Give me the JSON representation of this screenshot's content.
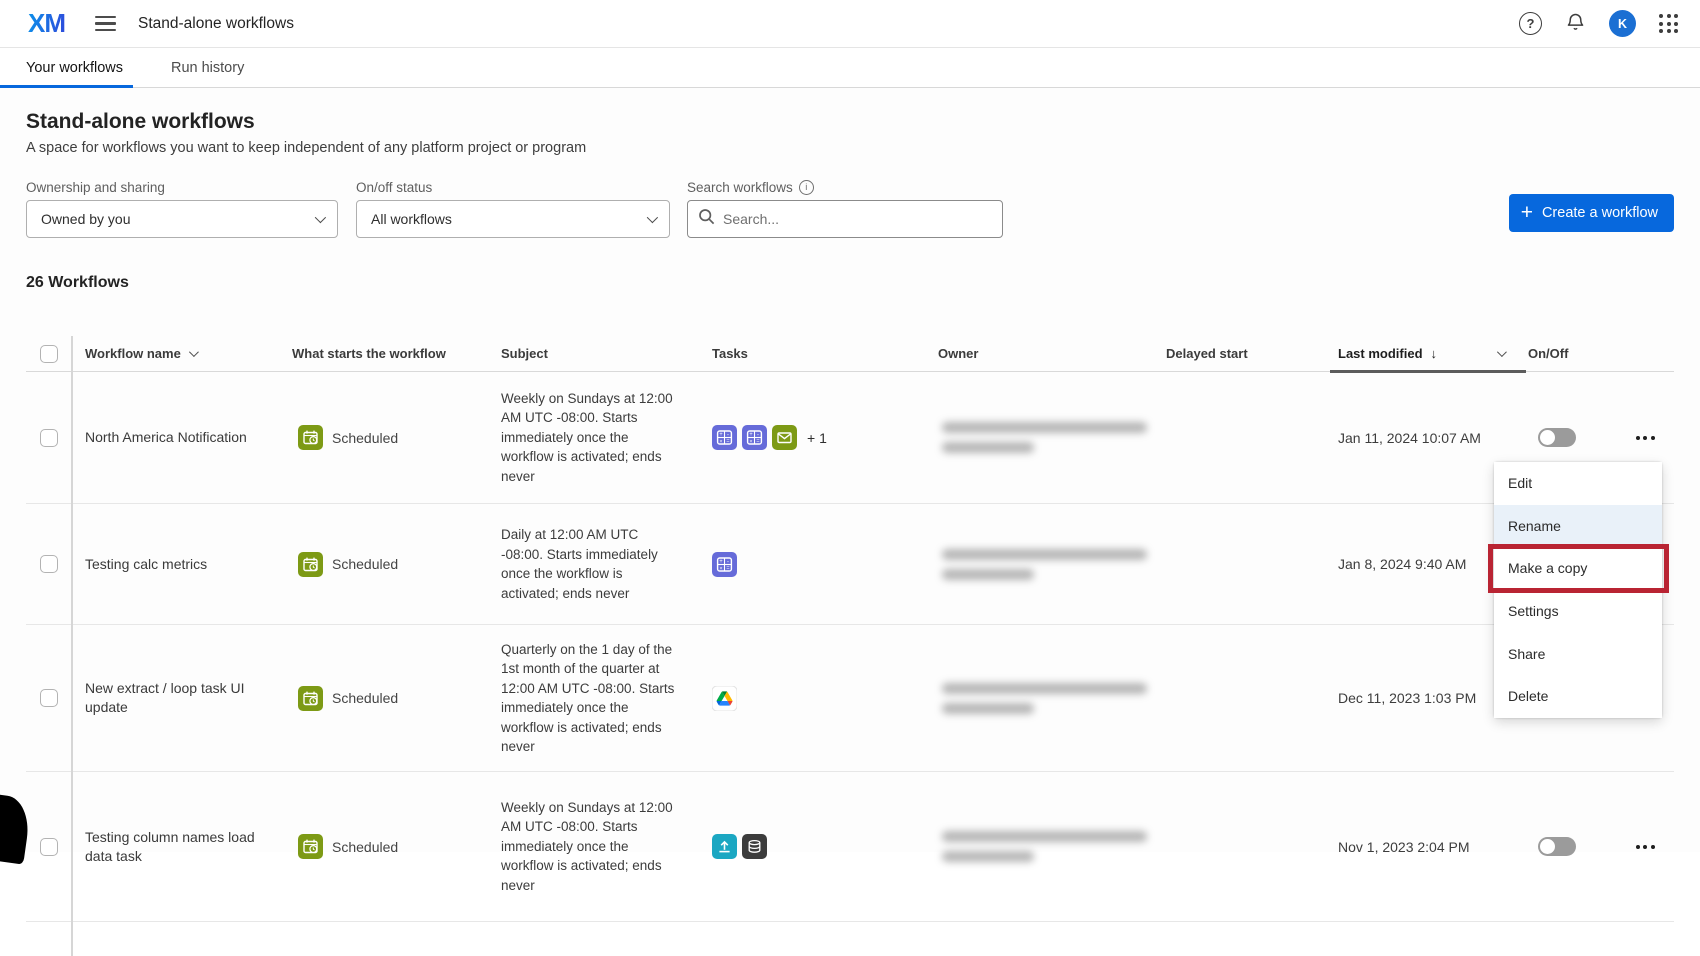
{
  "header": {
    "logo_text": "XM",
    "title": "Stand-alone workflows",
    "avatar_initial": "K",
    "help_glyph": "?"
  },
  "tabs": [
    {
      "label": "Your workflows",
      "active": true
    },
    {
      "label": "Run history",
      "active": false
    }
  ],
  "page": {
    "title": "Stand-alone workflows",
    "subtitle": "A space for workflows you want to keep independent of any platform project or program"
  },
  "filters": {
    "ownership": {
      "label": "Ownership and sharing",
      "value": "Owned by you"
    },
    "status": {
      "label": "On/off status",
      "value": "All workflows"
    },
    "search": {
      "label": "Search workflows",
      "placeholder": "Search..."
    }
  },
  "actions": {
    "create_label": "Create a workflow",
    "plus_glyph": "+"
  },
  "summary": {
    "count_label": "26 Workflows"
  },
  "table": {
    "columns": [
      {
        "label": "Workflow name",
        "sortable": true
      },
      {
        "label": "What starts the workflow"
      },
      {
        "label": "Subject"
      },
      {
        "label": "Tasks"
      },
      {
        "label": "Owner"
      },
      {
        "label": "Delayed start"
      },
      {
        "label": "Last modified",
        "sorted": "desc",
        "sort_glyph": "↓"
      },
      {
        "label": "On/Off"
      }
    ],
    "rows": [
      {
        "name": "North America Notification",
        "trigger": "Scheduled",
        "subject": "Weekly on Sundays at 12:00 AM UTC -08:00. Starts immediately once the workflow is activated; ends never",
        "tasks": [
          "calculation",
          "calculation",
          "email"
        ],
        "tasks_extra": "+ 1",
        "owner_redacted": true,
        "delayed_start": "",
        "last_modified": "Jan 11, 2024 10:07 AM",
        "on": false
      },
      {
        "name": "Testing calc metrics",
        "trigger": "Scheduled",
        "subject": "Daily at 12:00 AM UTC -08:00. Starts immediately once the workflow is activated; ends never",
        "tasks": [
          "calculation"
        ],
        "tasks_extra": "",
        "owner_redacted": true,
        "delayed_start": "",
        "last_modified": "Jan 8, 2024 9:40 AM",
        "on": false
      },
      {
        "name": "New extract / loop task UI update",
        "trigger": "Scheduled",
        "subject": "Quarterly on the 1 day of the 1st month of the quarter at 12:00 AM UTC -08:00. Starts immediately once the workflow is activated; ends never",
        "tasks": [
          "google-drive"
        ],
        "tasks_extra": "",
        "owner_redacted": true,
        "delayed_start": "",
        "last_modified": "Dec 11, 2023 1:03 PM",
        "on": false
      },
      {
        "name": "Testing column names load data task",
        "trigger": "Scheduled",
        "subject": "Weekly on Sundays at 12:00 AM UTC -08:00. Starts immediately once the workflow is activated; ends never",
        "tasks": [
          "upload",
          "load-data"
        ],
        "tasks_extra": "",
        "owner_redacted": true,
        "delayed_start": "",
        "last_modified": "Nov 1, 2023 2:04 PM",
        "on": false
      }
    ]
  },
  "context_menu": {
    "items": [
      {
        "label": "Edit"
      },
      {
        "label": "Rename",
        "hovered": true
      },
      {
        "label": "Make a copy",
        "highlighted": true
      },
      {
        "label": "Settings"
      },
      {
        "label": "Share"
      },
      {
        "label": "Delete"
      }
    ]
  },
  "colors": {
    "accent_blue": "#0768dd",
    "scheduled_green": "#7d9a15",
    "task_purple": "#666bd9",
    "task_teal": "#1ba7c2",
    "task_dark": "#3c3c3c",
    "highlight_red": "#b92433"
  }
}
